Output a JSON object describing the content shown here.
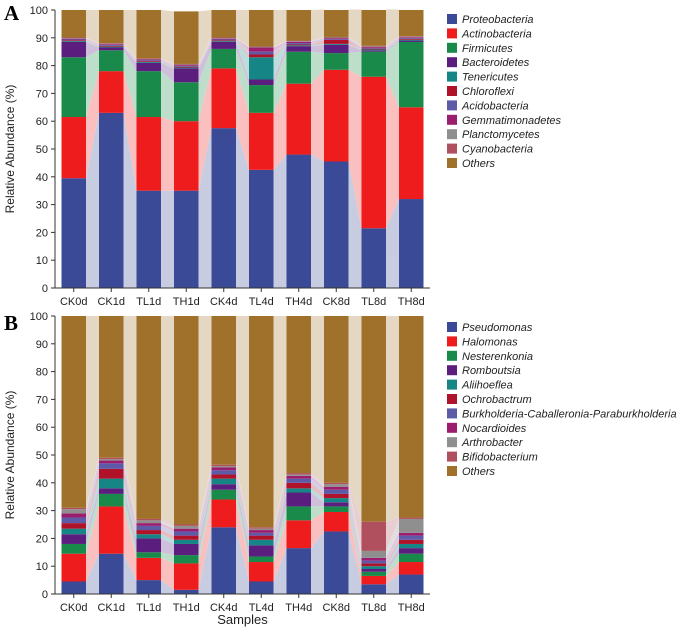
{
  "chart_data": [
    {
      "type": "stacked-bar",
      "panel_label": "A",
      "title": "",
      "xlabel": "",
      "ylabel": "Relative Abundance (%)",
      "ylim": [
        0,
        100
      ],
      "yticks": [
        "0",
        "10",
        "20",
        "30",
        "40",
        "50",
        "60",
        "70",
        "80",
        "90",
        "100"
      ],
      "categories": [
        "CK0d",
        "CK1d",
        "TL1d",
        "TH1d",
        "CK4d",
        "TL4d",
        "TH4d",
        "CK8d",
        "TL8d",
        "TH8d"
      ],
      "series": [
        {
          "name": "Proteobacteria",
          "color": "#3B4A96",
          "values": [
            39.5,
            63,
            35,
            35,
            57.5,
            42.5,
            48,
            45.5,
            21.5,
            32
          ]
        },
        {
          "name": "Actinobacteria",
          "color": "#EE1C1C",
          "values": [
            22,
            15,
            26.5,
            25,
            21.5,
            20.5,
            25.5,
            33,
            54.5,
            33
          ]
        },
        {
          "name": "Firmicutes",
          "color": "#1A8A4A",
          "values": [
            21.5,
            7.5,
            16.5,
            14,
            7,
            10,
            11.5,
            6,
            9,
            23.5
          ]
        },
        {
          "name": "Bacteroidetes",
          "color": "#5B1E7E",
          "values": [
            5.5,
            1,
            3,
            5,
            2.5,
            2,
            2,
            3,
            0.5,
            0.5
          ]
        },
        {
          "name": "Tenericutes",
          "color": "#168585",
          "values": [
            0.3,
            0.3,
            0.3,
            0.3,
            0.3,
            8,
            0.3,
            0.3,
            0.3,
            0.3
          ]
        },
        {
          "name": "Chloroflexi",
          "color": "#B0122A",
          "values": [
            0.3,
            0.3,
            0.3,
            0.3,
            0.3,
            1,
            0.3,
            1.5,
            0.3,
            0.3
          ]
        },
        {
          "name": "Acidobacteria",
          "color": "#5D5BA8",
          "values": [
            0.3,
            0.3,
            0.3,
            0.3,
            0.3,
            1,
            0.5,
            0.3,
            0.3,
            0.3
          ]
        },
        {
          "name": "Gemmatimonadetes",
          "color": "#9B1E6E",
          "values": [
            0.3,
            0.3,
            0.3,
            0.3,
            0.3,
            1.5,
            0.5,
            0.3,
            0.3,
            0.3
          ]
        },
        {
          "name": "Planctomycetes",
          "color": "#8F8F8F",
          "values": [
            0.2,
            0.2,
            0.2,
            0.2,
            0.2,
            0.2,
            0.2,
            0.2,
            0.2,
            0.2
          ]
        },
        {
          "name": "Cyanobacteria",
          "color": "#B0505E",
          "values": [
            0.2,
            0.2,
            0.2,
            0.2,
            0.2,
            0.2,
            0.2,
            0.2,
            0.2,
            0.2
          ]
        },
        {
          "name": "Others",
          "color": "#A0712A",
          "values": [
            9.9,
            11.9,
            17.4,
            18.9,
            9.9,
            13.1,
            11,
            9.9,
            13.1,
            9.6
          ]
        }
      ]
    },
    {
      "type": "stacked-bar",
      "panel_label": "B",
      "title": "",
      "xlabel": "Samples",
      "ylabel": "Relative Abundance (%)",
      "ylim": [
        0,
        100
      ],
      "yticks": [
        "0",
        "10",
        "20",
        "30",
        "40",
        "50",
        "60",
        "70",
        "80",
        "90",
        "100"
      ],
      "categories": [
        "CK0d",
        "CK1d",
        "TL1d",
        "TH1d",
        "CK4d",
        "TL4d",
        "TH4d",
        "CK8d",
        "TL8d",
        "TH8d"
      ],
      "series": [
        {
          "name": "Pseudomonas",
          "color": "#3B4A96",
          "values": [
            4.5,
            14.5,
            5,
            1.5,
            24,
            4.5,
            16.5,
            22.5,
            3.5,
            7
          ]
        },
        {
          "name": "Halomonas",
          "color": "#EE1C1C",
          "values": [
            10,
            17,
            8,
            9.5,
            10,
            7,
            10,
            7,
            3,
            4.5
          ]
        },
        {
          "name": "Nesterenkonia",
          "color": "#1A8A4A",
          "values": [
            3.5,
            4.5,
            2,
            3,
            3.5,
            2,
            5,
            2,
            1.5,
            3
          ]
        },
        {
          "name": "Romboutsia",
          "color": "#5B1E7E",
          "values": [
            3.5,
            2,
            5,
            4,
            2,
            4,
            5,
            1.5,
            1,
            2
          ]
        },
        {
          "name": "Aliihoeflea",
          "color": "#168585",
          "values": [
            2,
            3.5,
            1.5,
            1.5,
            2,
            2,
            1.5,
            1.5,
            1,
            1.5
          ]
        },
        {
          "name": "Ochrobactrum",
          "color": "#B0122A",
          "values": [
            2,
            3.5,
            1.5,
            1.5,
            1.5,
            1.5,
            2,
            1.5,
            1,
            1.5
          ]
        },
        {
          "name": "Burkholderia-Caballeronia-Paraburkholderia",
          "color": "#5D5BA8",
          "values": [
            2,
            2,
            1.5,
            1.5,
            1.5,
            1,
            1.5,
            1.5,
            1,
            1.5
          ]
        },
        {
          "name": "Nocardioides",
          "color": "#9B1E6E",
          "values": [
            1.5,
            1,
            1,
            1,
            1,
            1,
            1,
            1,
            1,
            1
          ]
        },
        {
          "name": "Arthrobacter",
          "color": "#8F8F8F",
          "values": [
            1.5,
            0.5,
            1,
            1,
            0.5,
            0.5,
            0.5,
            1,
            2.5,
            5
          ]
        },
        {
          "name": "Bifidobacterium",
          "color": "#B0505E",
          "values": [
            0.5,
            0.5,
            0.5,
            0.5,
            0.5,
            0.5,
            0.5,
            0.5,
            10.5,
            0.5
          ]
        },
        {
          "name": "Others",
          "color": "#A0712A",
          "values": [
            69,
            51,
            73,
            75,
            53.5,
            76,
            56.5,
            60,
            74,
            72.5
          ]
        }
      ]
    }
  ]
}
